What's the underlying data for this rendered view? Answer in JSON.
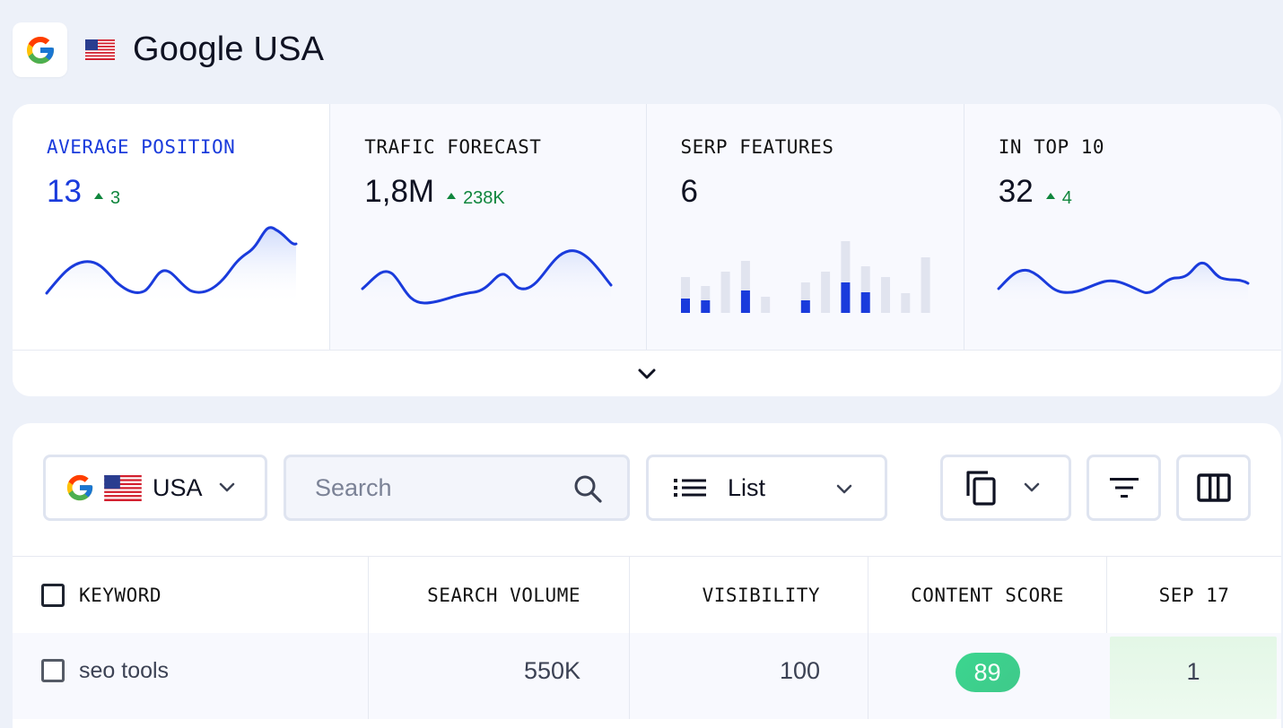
{
  "header": {
    "title": "Google USA",
    "engine_icon": "google-g-icon",
    "flag_icon": "us-flag-icon"
  },
  "metrics": [
    {
      "label": "AVERAGE POSITION",
      "value": "13",
      "delta": "3",
      "trend": "up",
      "active": true
    },
    {
      "label": "TRAFIC FORECAST",
      "value": "1,8M",
      "delta": "238K",
      "trend": "up",
      "active": false
    },
    {
      "label": "SERP FEATURES",
      "value": "6",
      "delta": "",
      "trend": "",
      "active": false
    },
    {
      "label": "IN TOP 10",
      "value": "32",
      "delta": "4",
      "trend": "up",
      "active": false
    }
  ],
  "serp_bars": {
    "totals": [
      40,
      30,
      46,
      58,
      18,
      0,
      34,
      46,
      80,
      52,
      40,
      22,
      62
    ],
    "highlight": [
      16,
      14,
      0,
      25,
      0,
      0,
      14,
      0,
      34,
      23,
      0,
      0,
      0
    ]
  },
  "toolbar": {
    "location_label": "USA",
    "search_placeholder": "Search",
    "view_label": "List"
  },
  "table": {
    "columns": [
      "KEYWORD",
      "SEARCH VOLUME",
      "VISIBILITY",
      "CONTENT SCORE",
      "SEP 17"
    ],
    "rows": [
      {
        "keyword": "seo tools",
        "search_volume": "550K",
        "visibility": "100",
        "content_score": "89",
        "rank": "1"
      }
    ]
  },
  "colors": {
    "accent": "#1a3bdc",
    "positive": "#10863d",
    "score": "#3bd68f",
    "rank_bg": "#e3f7e6"
  }
}
